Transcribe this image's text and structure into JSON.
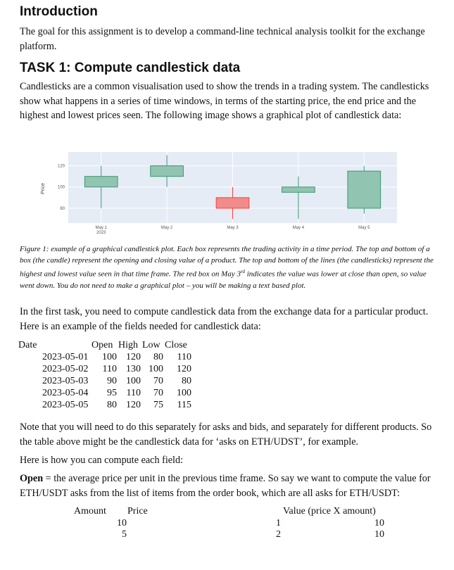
{
  "intro": {
    "heading": "Introduction",
    "text": "The goal for this assignment is to develop a command-line technical analysis toolkit for the exchange platform."
  },
  "task1": {
    "heading": "TASK 1: Compute candlestick data",
    "text": "Candlesticks are a common visualisation used to show the trends in a trading system. The candlesticks show what happens in a series of time windows, in terms of the starting price, the end price and the highest and lowest prices seen. The following image shows a graphical plot of candlestick data:"
  },
  "chart_data": {
    "type": "candlestick",
    "categories": [
      "May 1",
      "May 2",
      "May 3",
      "May 4",
      "May 5"
    ],
    "year_label": "2023",
    "open": [
      100,
      110,
      90,
      95,
      80
    ],
    "high": [
      120,
      130,
      100,
      110,
      120
    ],
    "low": [
      80,
      100,
      70,
      70,
      75
    ],
    "close": [
      110,
      120,
      80,
      100,
      115
    ],
    "ylabel": "Price",
    "yticks": [
      80,
      100,
      120
    ],
    "ylim": [
      66,
      133
    ],
    "grid": true,
    "colors": {
      "up_fill": "#91c4b1",
      "up_line": "#3d9970",
      "down_fill": "#f28b8b",
      "down_line": "#ff4136",
      "plot_bg": "#e5ecf6"
    }
  },
  "caption": {
    "before": "Figure 1: example of a graphical candlestick plot. Each box represents the trading activity in a time period. The top and bottom of a box (the candle) represent the opening and closing value of a product. The top and bottom of the lines (the candlesticks) represent the highest and lowest value seen in that time frame. The red box on May 3",
    "sup": "rd",
    "after": " indicates the value was lower at close than open, so value went down. You do not need to make a graphical plot – you will be making a text based plot."
  },
  "first_task_text": "In the first task, you need to compute candlestick data from the exchange data for a particular product. Here is an example of the fields needed for candlestick data:",
  "candle_table": {
    "date_header": "Date",
    "headers": [
      "Open",
      "High",
      "Low",
      "Close"
    ],
    "rows": [
      {
        "date": "2023-05-01",
        "open": "100",
        "high": "120",
        "low": "80",
        "close": "110"
      },
      {
        "date": "2023-05-02",
        "open": "110",
        "high": "130",
        "low": "100",
        "close": "120"
      },
      {
        "date": "2023-05-03",
        "open": "90",
        "high": "100",
        "low": "70",
        "close": "80"
      },
      {
        "date": "2023-05-04",
        "open": "95",
        "high": "110",
        "low": "70",
        "close": "100"
      },
      {
        "date": "2023-05-05",
        "open": "80",
        "high": "120",
        "low": "75",
        "close": "115"
      }
    ]
  },
  "note_text": "Note that you will need to do this separately for asks and bids, and separately for different products. So the table above might be the candlestick data for ‘asks on ETH/UDST’, for example.",
  "how_text": "Here is how you can compute each field:",
  "open_def": {
    "term": "Open",
    "text": " = the average price per unit in the previous time frame. So say we want to compute the value for ETH/USDT asks from the list of items from the order book, which are all asks for ETH/USDT:"
  },
  "order_table": {
    "headers": [
      "Amount",
      "Price",
      "Value (price X amount)"
    ],
    "rows": [
      {
        "amount": "10",
        "price": "1",
        "value": "10"
      },
      {
        "amount": "5",
        "price": "2",
        "value": "10"
      }
    ]
  }
}
